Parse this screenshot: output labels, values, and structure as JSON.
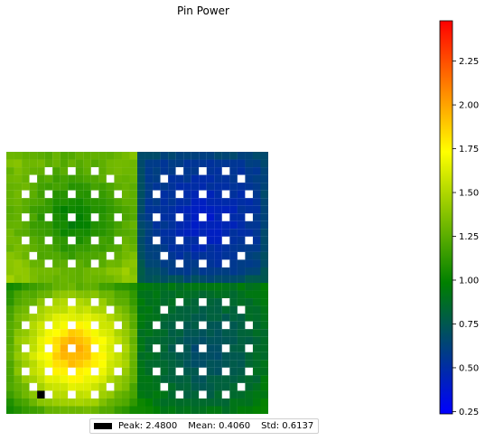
{
  "chart_data": {
    "type": "heatmap",
    "title": "Pin Power",
    "grid_size": 34,
    "quadrant_size": 17,
    "colormap": [
      "#0000ff",
      "#008000",
      "#ffff00",
      "#ff0000"
    ],
    "colorbar": {
      "range": [
        0.2367,
        2.48
      ],
      "ticks": [
        0.25,
        0.5,
        0.75,
        1.0,
        1.25,
        1.5,
        1.75,
        2.0,
        2.25
      ],
      "tick_labels": [
        "0.25",
        "0.50",
        "0.75",
        "1.00",
        "1.25",
        "1.50",
        "1.75",
        "2.00",
        "2.25"
      ]
    },
    "quadrants": {
      "top_left": {
        "corner": [
          1.4,
          1.5
        ],
        "center": [
          1.05,
          0.85
        ]
      },
      "top_right": {
        "corner": [
          0.6,
          0.72
        ],
        "center": [
          0.5,
          0.3
        ]
      },
      "bottom_left": {
        "corner": [
          1.05,
          1.05
        ],
        "center": [
          1.85,
          2.25
        ]
      },
      "bottom_right": {
        "corner": [
          0.95,
          1.0
        ],
        "center": [
          0.75,
          0.55
        ]
      }
    },
    "guide_tube_positions": [
      [
        2,
        5
      ],
      [
        2,
        8
      ],
      [
        2,
        11
      ],
      [
        3,
        3
      ],
      [
        3,
        13
      ],
      [
        5,
        2
      ],
      [
        5,
        5
      ],
      [
        5,
        8
      ],
      [
        5,
        11
      ],
      [
        5,
        14
      ],
      [
        8,
        2
      ],
      [
        8,
        5
      ],
      [
        8,
        8
      ],
      [
        8,
        11
      ],
      [
        8,
        14
      ],
      [
        11,
        2
      ],
      [
        11,
        5
      ],
      [
        11,
        8
      ],
      [
        11,
        11
      ],
      [
        11,
        14
      ],
      [
        13,
        3
      ],
      [
        13,
        13
      ],
      [
        14,
        5
      ],
      [
        14,
        8
      ],
      [
        14,
        11
      ]
    ],
    "peak_pins": [
      [
        30,
        3
      ],
      [
        31,
        4
      ]
    ],
    "stats": {
      "peak": 2.48,
      "mean": 0.406,
      "std": 0.6137
    }
  },
  "legend": {
    "peak_label": "Peak: 2.4800",
    "mean_label": "Mean: 0.4060",
    "std_label": "Std: 0.6137"
  }
}
